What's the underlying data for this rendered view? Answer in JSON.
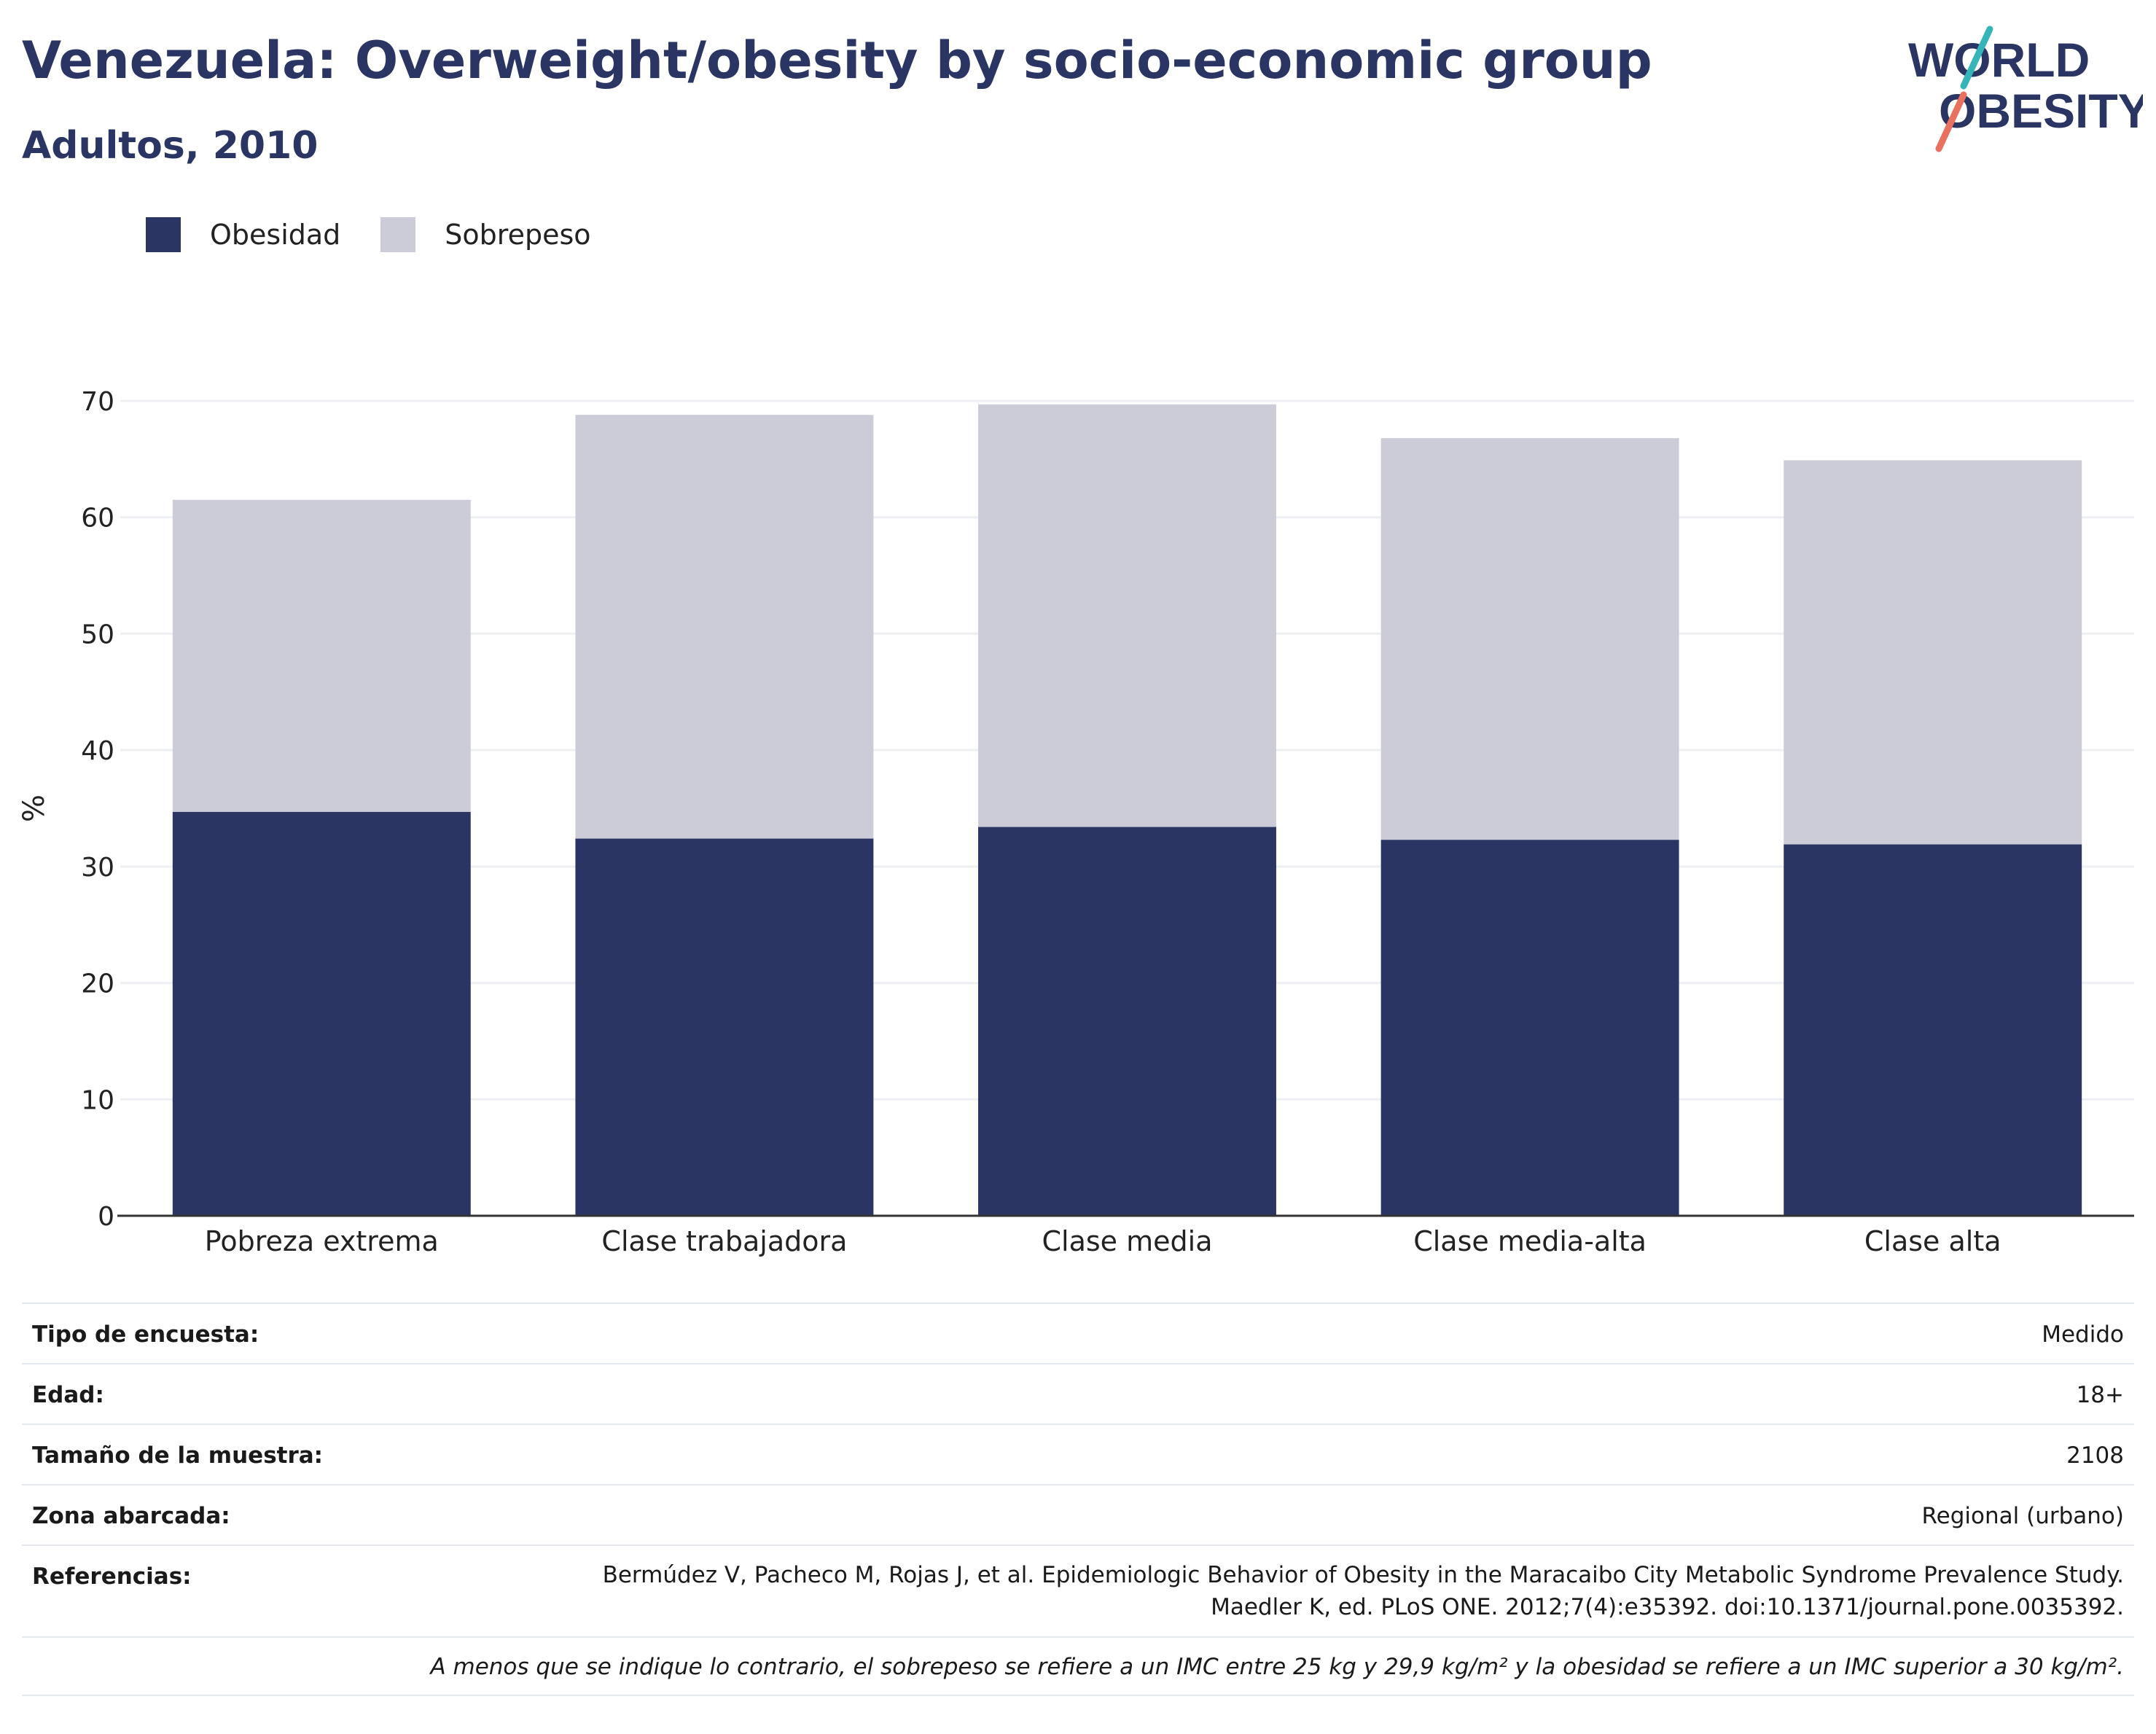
{
  "header": {
    "title": "Venezuela: Overweight/obesity by socio-economic group",
    "subtitle": "Adultos, 2010"
  },
  "logo": {
    "line1": "WORLD",
    "line2": "OBESITY"
  },
  "colors": {
    "obesity": "#2a3564",
    "overweight": "#cbccd8",
    "text": "#2a3564",
    "grid": "#eeeff3",
    "axis": "#333333"
  },
  "chart_data": {
    "type": "bar",
    "stacked": true,
    "categories": [
      "Pobreza extrema",
      "Clase trabajadora",
      "Clase media",
      "Clase media-alta",
      "Clase alta"
    ],
    "series": [
      {
        "name": "Obesidad",
        "color": "#2a3564",
        "values": [
          34.7,
          32.4,
          33.4,
          32.3,
          31.9
        ]
      },
      {
        "name": "Sobrepeso",
        "color": "#cbccd8",
        "values": [
          26.8,
          36.4,
          36.3,
          34.5,
          33.0
        ]
      }
    ],
    "ylabel": "%",
    "xlabel": "",
    "ylim": [
      0,
      70
    ],
    "yticks": [
      0,
      10,
      20,
      30,
      40,
      50,
      60,
      70
    ],
    "grid": true,
    "legend_position": "top-left"
  },
  "info": {
    "rows": [
      {
        "key": "Tipo de encuesta:",
        "value": "Medido"
      },
      {
        "key": "Edad:",
        "value": "18+"
      },
      {
        "key": "Tamaño de la muestra:",
        "value": "2108"
      },
      {
        "key": "Zona abarcada:",
        "value": "Regional (urbano)"
      }
    ],
    "references_key": "Referencias:",
    "references_line1": "Bermúdez V, Pacheco M, Rojas J, et al. Epidemiologic Behavior of Obesity in the Maracaibo City Metabolic Syndrome Prevalence Study.",
    "references_line2": "Maedler K, ed. PLoS ONE. 2012;7(4):e35392. doi:10.1371/journal.pone.0035392.",
    "note": "A menos que se indique lo contrario, el sobrepeso se refiere a un IMC entre 25 kg y 29,9 kg/m² y la obesidad se refiere a un IMC superior a 30 kg/m²."
  }
}
